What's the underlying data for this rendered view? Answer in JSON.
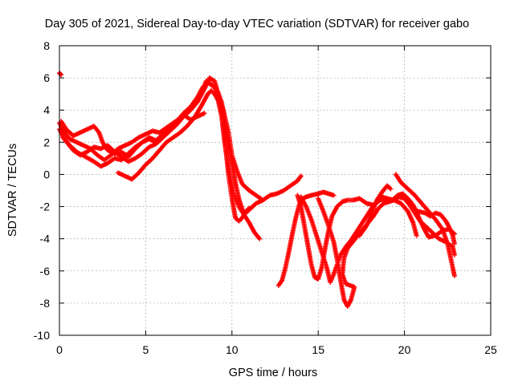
{
  "chart_data": {
    "type": "scatter",
    "title": "Day 305 of 2021, Sidereal Day-to-day VTEC variation (SDTVAR) for receiver gabo",
    "xlabel": "GPS time / hours",
    "ylabel": "SDTVAR / TECUs",
    "xlim": [
      0,
      25
    ],
    "ylim": [
      -10,
      8
    ],
    "xticks": [
      "0",
      "5",
      "10",
      "15",
      "20",
      "25"
    ],
    "yticks": [
      "-10",
      "-8",
      "-6",
      "-4",
      "-2",
      "0",
      "2",
      "4",
      "6",
      "8"
    ],
    "grid": true,
    "legend": "none",
    "marker": "+",
    "color": "#ff0000",
    "series": [
      {
        "points": [
          [
            0.0,
            6.3
          ],
          [
            0.1,
            6.2
          ]
        ]
      },
      {
        "points": [
          [
            0.0,
            3.2
          ],
          [
            0.3,
            2.6
          ],
          [
            0.6,
            2.2
          ],
          [
            1.0,
            2.0
          ],
          [
            1.4,
            1.8
          ],
          [
            1.8,
            1.6
          ],
          [
            2.2,
            1.2
          ],
          [
            2.6,
            0.9
          ],
          [
            3.0,
            1.2
          ],
          [
            3.4,
            1.6
          ],
          [
            3.8,
            1.8
          ],
          [
            4.2,
            2.0
          ],
          [
            4.6,
            2.3
          ],
          [
            5.0,
            2.5
          ],
          [
            5.4,
            2.7
          ],
          [
            5.8,
            2.6
          ],
          [
            6.2,
            2.9
          ],
          [
            6.6,
            3.2
          ],
          [
            7.0,
            3.5
          ],
          [
            7.4,
            3.8
          ],
          [
            7.8,
            4.3
          ],
          [
            8.2,
            5.0
          ],
          [
            8.5,
            5.8
          ],
          [
            8.8,
            5.6
          ],
          [
            9.1,
            5.3
          ],
          [
            9.4,
            4.5
          ],
          [
            9.6,
            3.0
          ],
          [
            9.8,
            1.8
          ],
          [
            10.0,
            0.7
          ],
          [
            10.2,
            -0.5
          ],
          [
            10.4,
            -1.5
          ],
          [
            10.7,
            -2.5
          ],
          [
            11.0,
            -3.0
          ],
          [
            11.3,
            -3.6
          ],
          [
            11.6,
            -4.0
          ]
        ]
      },
      {
        "points": [
          [
            0.1,
            3.3
          ],
          [
            0.4,
            2.8
          ],
          [
            0.8,
            2.4
          ],
          [
            1.2,
            2.6
          ],
          [
            1.6,
            2.8
          ],
          [
            2.0,
            3.0
          ],
          [
            2.3,
            2.6
          ],
          [
            2.5,
            2.0
          ],
          [
            2.8,
            1.5
          ],
          [
            3.2,
            1.3
          ],
          [
            3.6,
            1.4
          ],
          [
            4.0,
            1.1
          ],
          [
            4.4,
            1.6
          ],
          [
            4.8,
            2.0
          ],
          [
            5.2,
            2.3
          ],
          [
            5.6,
            2.1
          ],
          [
            6.0,
            2.5
          ],
          [
            6.4,
            2.9
          ],
          [
            6.8,
            3.3
          ],
          [
            7.2,
            3.8
          ],
          [
            7.6,
            4.2
          ],
          [
            8.0,
            4.8
          ],
          [
            8.3,
            5.4
          ],
          [
            8.6,
            5.7
          ],
          [
            8.9,
            5.5
          ],
          [
            9.2,
            5.1
          ],
          [
            9.5,
            4.0
          ],
          [
            9.8,
            2.6
          ],
          [
            10.0,
            1.2
          ],
          [
            10.3,
            0.2
          ],
          [
            10.6,
            -0.6
          ],
          [
            11.0,
            -1.0
          ],
          [
            11.4,
            -1.3
          ],
          [
            11.8,
            -1.6
          ],
          [
            12.2,
            -1.3
          ],
          [
            12.6,
            -1.2
          ],
          [
            13.0,
            -1.0
          ],
          [
            13.4,
            -0.7
          ],
          [
            13.8,
            -0.4
          ],
          [
            14.0,
            -0.1
          ]
        ]
      },
      {
        "points": [
          [
            0.2,
            2.3
          ],
          [
            0.5,
            1.9
          ],
          [
            0.8,
            1.5
          ],
          [
            1.2,
            1.2
          ],
          [
            1.6,
            1.4
          ],
          [
            2.0,
            1.7
          ],
          [
            2.4,
            1.6
          ],
          [
            2.8,
            1.8
          ],
          [
            3.2,
            1.4
          ],
          [
            3.6,
            1.1
          ],
          [
            4.0,
            0.8
          ],
          [
            4.4,
            1.0
          ],
          [
            4.8,
            1.3
          ],
          [
            5.2,
            1.7
          ],
          [
            5.6,
            1.9
          ],
          [
            6.0,
            2.3
          ],
          [
            6.4,
            2.7
          ],
          [
            6.8,
            3.1
          ],
          [
            7.2,
            3.6
          ],
          [
            7.6,
            4.0
          ],
          [
            8.0,
            4.5
          ],
          [
            8.4,
            5.3
          ],
          [
            8.7,
            6.0
          ],
          [
            9.0,
            5.8
          ],
          [
            9.2,
            5.0
          ],
          [
            9.4,
            3.8
          ],
          [
            9.6,
            2.0
          ],
          [
            9.8,
            0.0
          ],
          [
            10.0,
            -1.5
          ],
          [
            10.2,
            -2.7
          ],
          [
            10.4,
            -2.9
          ],
          [
            10.6,
            -2.7
          ],
          [
            10.8,
            -2.3
          ],
          [
            11.0,
            -2.1
          ]
        ]
      },
      {
        "points": [
          [
            0.0,
            2.8
          ],
          [
            0.3,
            2.2
          ],
          [
            0.6,
            1.8
          ],
          [
            1.0,
            1.4
          ],
          [
            1.5,
            1.1
          ],
          [
            2.0,
            0.8
          ],
          [
            2.4,
            0.5
          ],
          [
            2.8,
            0.7
          ],
          [
            3.2,
            1.0
          ],
          [
            3.6,
            0.9
          ],
          [
            4.0,
            1.3
          ],
          [
            4.4,
            1.7
          ],
          [
            4.8,
            2.0
          ],
          [
            5.2,
            2.2
          ],
          [
            5.6,
            2.0
          ],
          [
            6.0,
            2.4
          ],
          [
            6.4,
            2.8
          ],
          [
            6.8,
            3.3
          ],
          [
            7.2,
            3.7
          ],
          [
            7.6,
            3.4
          ],
          [
            8.0,
            3.6
          ],
          [
            8.4,
            3.8
          ]
        ]
      },
      {
        "points": [
          [
            3.4,
            0.1
          ],
          [
            3.8,
            -0.1
          ],
          [
            4.2,
            -0.3
          ],
          [
            4.6,
            0.1
          ],
          [
            5.0,
            0.6
          ],
          [
            5.4,
            1.0
          ],
          [
            5.8,
            1.5
          ],
          [
            6.2,
            2.0
          ],
          [
            6.6,
            2.3
          ],
          [
            7.0,
            2.6
          ],
          [
            7.4,
            3.0
          ],
          [
            7.8,
            3.5
          ],
          [
            8.2,
            4.2
          ],
          [
            8.6,
            5.0
          ],
          [
            8.8,
            5.2
          ],
          [
            9.0,
            5.0
          ],
          [
            9.2,
            4.6
          ],
          [
            9.4,
            3.6
          ],
          [
            9.6,
            1.8
          ],
          [
            9.8,
            0.4
          ],
          [
            10.1,
            -1.2
          ],
          [
            10.4,
            -2.0
          ],
          [
            10.7,
            -2.5
          ],
          [
            11.0,
            -2.2
          ],
          [
            11.4,
            -1.8
          ],
          [
            11.8,
            -1.6
          ]
        ]
      },
      {
        "points": [
          [
            12.7,
            -6.9
          ],
          [
            12.9,
            -6.6
          ],
          [
            13.1,
            -5.8
          ],
          [
            13.3,
            -4.8
          ],
          [
            13.5,
            -3.7
          ],
          [
            13.7,
            -2.7
          ],
          [
            13.9,
            -1.9
          ],
          [
            14.1,
            -1.5
          ],
          [
            14.3,
            -1.4
          ],
          [
            14.6,
            -1.3
          ],
          [
            15.0,
            -1.2
          ],
          [
            15.3,
            -1.1
          ],
          [
            15.6,
            -1.2
          ],
          [
            15.9,
            -1.3
          ]
        ]
      },
      {
        "points": [
          [
            13.8,
            -1.3
          ],
          [
            14.0,
            -2.0
          ],
          [
            14.2,
            -3.2
          ],
          [
            14.4,
            -4.4
          ],
          [
            14.6,
            -5.6
          ],
          [
            14.8,
            -6.4
          ],
          [
            15.0,
            -6.5
          ],
          [
            15.2,
            -5.8
          ],
          [
            15.4,
            -4.6
          ],
          [
            15.6,
            -3.5
          ],
          [
            15.8,
            -2.6
          ],
          [
            16.1,
            -2.0
          ],
          [
            16.4,
            -1.7
          ],
          [
            16.7,
            -1.6
          ],
          [
            17.0,
            -1.6
          ],
          [
            17.4,
            -1.5
          ],
          [
            17.8,
            -1.8
          ],
          [
            18.2,
            -1.9
          ],
          [
            18.6,
            -1.6
          ],
          [
            19.0,
            -1.5
          ],
          [
            19.4,
            -1.6
          ],
          [
            19.8,
            -1.8
          ],
          [
            20.2,
            -2.3
          ],
          [
            20.5,
            -3.0
          ],
          [
            20.7,
            -3.8
          ]
        ]
      },
      {
        "points": [
          [
            14.0,
            -1.4
          ],
          [
            14.3,
            -2.0
          ],
          [
            14.6,
            -2.8
          ],
          [
            14.9,
            -3.8
          ],
          [
            15.2,
            -4.8
          ],
          [
            15.5,
            -5.8
          ],
          [
            15.7,
            -6.7
          ],
          [
            15.9,
            -6.2
          ],
          [
            16.1,
            -5.6
          ],
          [
            16.3,
            -5.0
          ],
          [
            16.6,
            -4.5
          ],
          [
            16.9,
            -4.1
          ],
          [
            17.2,
            -3.6
          ],
          [
            17.5,
            -3.1
          ],
          [
            17.8,
            -2.6
          ],
          [
            18.1,
            -2.1
          ],
          [
            18.4,
            -1.7
          ],
          [
            18.7,
            -1.4
          ],
          [
            19.0,
            -1.5
          ],
          [
            19.3,
            -1.6
          ],
          [
            19.6,
            -1.3
          ],
          [
            19.9,
            -1.2
          ],
          [
            20.2,
            -1.5
          ],
          [
            20.5,
            -1.9
          ],
          [
            20.8,
            -2.6
          ],
          [
            21.1,
            -3.3
          ],
          [
            21.4,
            -3.9
          ],
          [
            21.8,
            -3.8
          ],
          [
            22.2,
            -3.5
          ],
          [
            22.6,
            -3.4
          ],
          [
            22.9,
            -3.7
          ]
        ]
      },
      {
        "points": [
          [
            15.0,
            -1.5
          ],
          [
            15.3,
            -2.3
          ],
          [
            15.6,
            -3.2
          ],
          [
            15.9,
            -4.2
          ],
          [
            16.1,
            -5.3
          ],
          [
            16.3,
            -6.6
          ],
          [
            16.5,
            -7.8
          ],
          [
            16.7,
            -8.2
          ],
          [
            16.9,
            -7.8
          ],
          [
            17.1,
            -7.0
          ],
          [
            16.6,
            -6.8
          ],
          [
            16.4,
            -6.2
          ],
          [
            16.5,
            -5.2
          ],
          [
            16.7,
            -4.6
          ],
          [
            17.0,
            -4.2
          ],
          [
            17.3,
            -3.8
          ],
          [
            17.6,
            -3.4
          ],
          [
            17.9,
            -3.0
          ],
          [
            18.2,
            -2.6
          ],
          [
            18.5,
            -2.1
          ],
          [
            18.8,
            -1.8
          ],
          [
            19.1,
            -1.7
          ],
          [
            19.4,
            -1.6
          ],
          [
            19.7,
            -1.4
          ],
          [
            20.0,
            -1.5
          ],
          [
            20.3,
            -1.9
          ],
          [
            20.6,
            -2.4
          ],
          [
            20.9,
            -2.9
          ],
          [
            21.2,
            -3.2
          ],
          [
            21.6,
            -3.6
          ],
          [
            22.0,
            -4.0
          ],
          [
            22.4,
            -4.2
          ],
          [
            22.8,
            -4.5
          ],
          [
            22.9,
            -5.0
          ]
        ]
      },
      {
        "points": [
          [
            17.4,
            -3.8
          ],
          [
            17.8,
            -3.2
          ],
          [
            18.1,
            -2.4
          ],
          [
            18.4,
            -1.6
          ],
          [
            18.7,
            -1.1
          ],
          [
            19.0,
            -0.7
          ],
          [
            19.2,
            -0.9
          ]
        ]
      },
      {
        "points": [
          [
            19.5,
            0.0
          ],
          [
            19.8,
            -0.5
          ],
          [
            20.2,
            -0.9
          ],
          [
            20.6,
            -1.3
          ],
          [
            21.0,
            -1.8
          ],
          [
            21.4,
            -2.3
          ],
          [
            21.8,
            -2.8
          ],
          [
            22.2,
            -3.4
          ],
          [
            22.5,
            -4.3
          ],
          [
            22.7,
            -5.3
          ],
          [
            22.9,
            -6.3
          ]
        ]
      },
      {
        "points": [
          [
            20.4,
            -2.0
          ],
          [
            20.8,
            -2.3
          ],
          [
            21.2,
            -2.4
          ],
          [
            21.5,
            -2.6
          ],
          [
            21.8,
            -2.4
          ],
          [
            22.1,
            -2.5
          ],
          [
            22.4,
            -2.9
          ],
          [
            22.6,
            -3.3
          ],
          [
            22.8,
            -3.8
          ],
          [
            22.9,
            -4.3
          ]
        ]
      }
    ]
  }
}
